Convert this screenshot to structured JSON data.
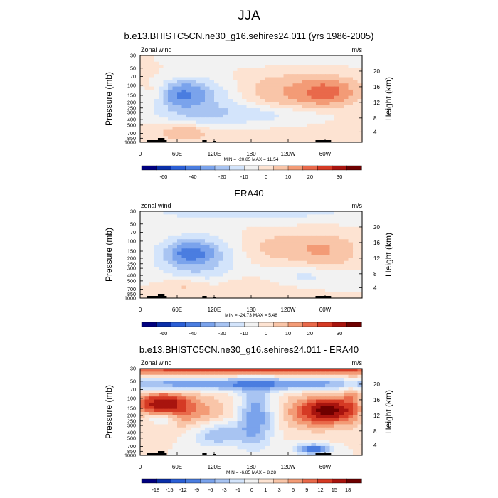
{
  "main_title": "JJA",
  "colors": {
    "blues": [
      "#00007f",
      "#0a2fa8",
      "#2b5fd6",
      "#4a7de0",
      "#7aa3ec",
      "#a8c4f2",
      "#d3e4fb"
    ],
    "whites": [
      "#f2f2f2"
    ],
    "reds": [
      "#fde3d2",
      "#f9c5a8",
      "#f39b76",
      "#e9694a",
      "#d53a24",
      "#a8140e",
      "#6e0000"
    ]
  },
  "chart_data": [
    {
      "type": "heatmap",
      "title": "b.e13.BHISTC5CN.ne30_g16.sehires24.011 (yrs 1986-2005)",
      "left_label": "Zonal wind",
      "right_label": "m/s",
      "ylabel": "Pressure (mb)",
      "y2label": "Height (km)",
      "x_ticks": [
        "0",
        "60E",
        "120E",
        "180",
        "120W",
        "60W"
      ],
      "y_ticks": [
        "30",
        "50",
        "70",
        "100",
        "150",
        "200",
        "250",
        "300",
        "400",
        "500",
        "700",
        "850",
        "1000"
      ],
      "y2_ticks": [
        "20",
        "16",
        "12",
        "8",
        "4"
      ],
      "stats": "MIN = -20.85   MAX =  11.54",
      "colorbar_labels": [
        "-60",
        "-40",
        "-20",
        "-10",
        "0",
        "10",
        "20",
        "30"
      ],
      "value_range": [
        -20.85,
        11.54
      ]
    },
    {
      "type": "heatmap",
      "title": "ERA40",
      "left_label": "zonal wind",
      "right_label": "m/s",
      "ylabel": "Pressure (mb)",
      "y2label": "Height (km)",
      "x_ticks": [
        "0",
        "60E",
        "120E",
        "180",
        "120W",
        "60W"
      ],
      "y_ticks": [
        "30",
        "50",
        "70",
        "100",
        "150",
        "200",
        "250",
        "300",
        "400",
        "500",
        "700",
        "850",
        "1000"
      ],
      "y2_ticks": [
        "20",
        "16",
        "12",
        "8",
        "4"
      ],
      "stats": "MIN = -24.73   MAX =   5.48",
      "colorbar_labels": [
        "-60",
        "-40",
        "-20",
        "-10",
        "0",
        "10",
        "20",
        "30"
      ],
      "value_range": [
        -24.73,
        5.48
      ]
    },
    {
      "type": "heatmap",
      "title": "b.e13.BHISTC5CN.ne30_g16.sehires24.011 - ERA40",
      "left_label": "Zonal wind",
      "right_label": "m/s",
      "ylabel": "Pressure (mb)",
      "y2label": "Height (km)",
      "x_ticks": [
        "0",
        "60E",
        "120E",
        "180",
        "120W",
        "60W"
      ],
      "y_ticks": [
        "30",
        "50",
        "70",
        "100",
        "150",
        "200",
        "250",
        "300",
        "400",
        "500",
        "700",
        "850",
        "1000"
      ],
      "y2_ticks": [
        "20",
        "16",
        "12",
        "8",
        "4"
      ],
      "stats": "MIN =  -6.85   MAX =   8.28",
      "colorbar_labels": [
        "-18",
        "-15",
        "-12",
        "-9",
        "-6",
        "-3",
        "-1",
        "0",
        "1",
        "3",
        "6",
        "9",
        "12",
        "15",
        "18"
      ],
      "value_range": [
        -6.85,
        8.28
      ]
    }
  ]
}
